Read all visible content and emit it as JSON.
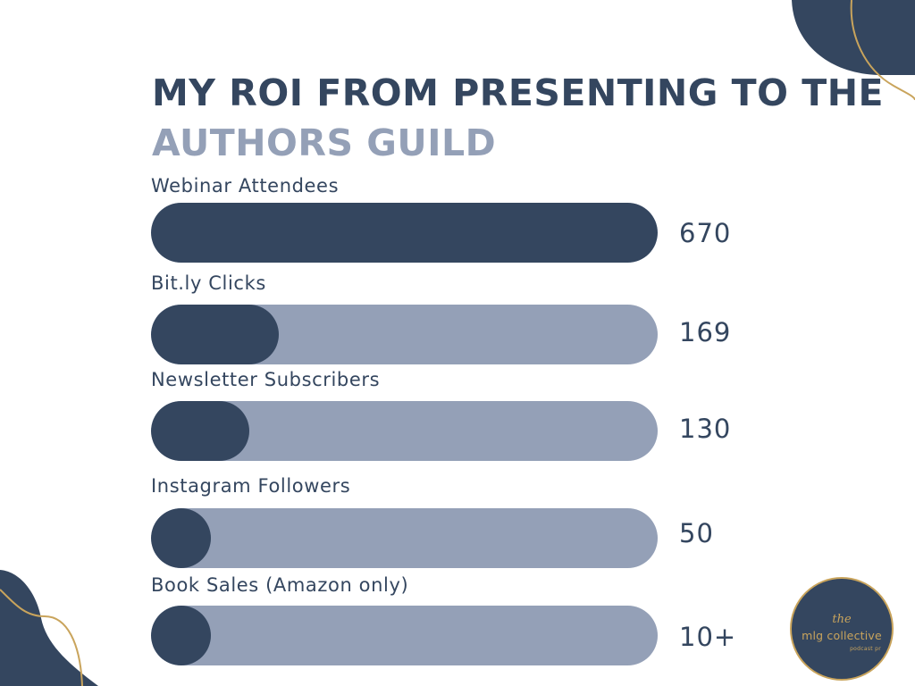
{
  "title": {
    "line1": "MY ROI FROM PRESENTING TO THE",
    "line2": "AUTHORS GUILD"
  },
  "colors": {
    "navy": "#34465f",
    "slate": "#94a0b7",
    "gold": "#c9a45c",
    "background": "#ffffff"
  },
  "chart_data": {
    "type": "bar",
    "orientation": "horizontal",
    "categories": [
      "Webinar Attendees",
      "Bit.ly Clicks",
      "Newsletter Subscribers",
      "Instagram Followers",
      "Book Sales (Amazon only)"
    ],
    "values": [
      670,
      169,
      130,
      50,
      10
    ],
    "value_labels": [
      "670",
      "169",
      "130",
      "50",
      "10+"
    ],
    "xlim": [
      0,
      670
    ],
    "grid": false,
    "legend": "none"
  },
  "logo": {
    "the": "the",
    "name": "mlg collective",
    "sub": "podcast pr"
  }
}
